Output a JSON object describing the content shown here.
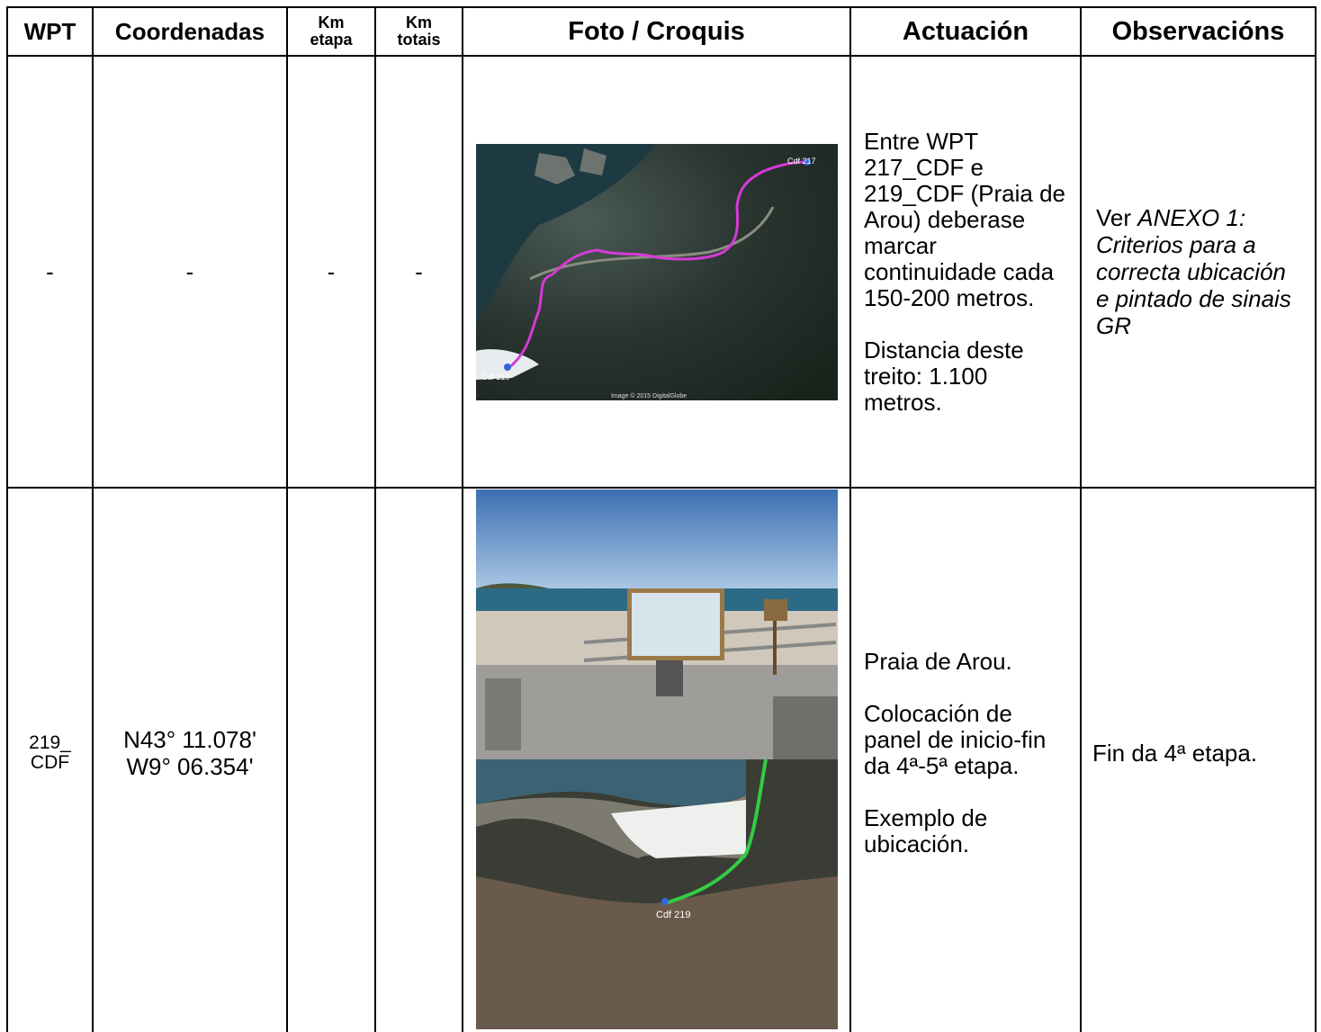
{
  "header": {
    "wpt": "WPT",
    "coordenadas": "Coordenadas",
    "km_etapa": [
      "Km",
      "etapa"
    ],
    "km_totais": [
      "Km",
      "totais"
    ],
    "foto": "Foto / Croquis",
    "actuacion": "Actuación",
    "observacions": "Observacións"
  },
  "rows": [
    {
      "wpt": "-",
      "coordenadas": "-",
      "km_etapa": "-",
      "km_totais": "-",
      "map_labels": [
        "Cdf 217",
        "Cdf 219",
        "Image © 2015 DigitalGlobe"
      ],
      "actuacion": [
        "Entre WPT 217_CDF e 219_CDF (Praia de Arou) deberase marcar continuidade cada 150-200 metros.",
        "Distancia deste treito: 1.100 metros."
      ],
      "observacions": {
        "plain": "Ver ",
        "italic": "ANEXO 1: Criterios para a correcta ubicación e pintado de sinais GR"
      }
    },
    {
      "wpt": [
        "219_",
        "CDF"
      ],
      "coordenadas": [
        "N43° 11.078'",
        "W9° 06.354'"
      ],
      "km_etapa": "",
      "km_totais": "",
      "map_labels": [
        "Cdf 219"
      ],
      "actuacion": [
        "Praia de Arou.",
        "Colocación de panel de inicio-fin da 4ª-5ª etapa.",
        "Exemplo de ubicación."
      ],
      "observacions": {
        "plain": "Fin da 4ª etapa."
      }
    }
  ]
}
